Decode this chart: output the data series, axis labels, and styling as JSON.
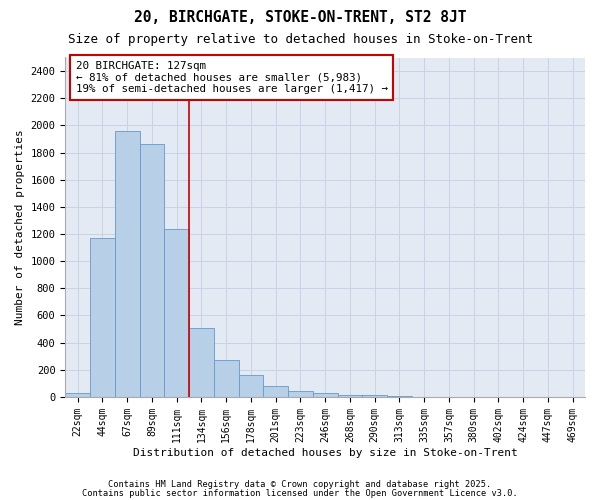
{
  "title1": "20, BIRCHGATE, STOKE-ON-TRENT, ST2 8JT",
  "title2": "Size of property relative to detached houses in Stoke-on-Trent",
  "xlabel": "Distribution of detached houses by size in Stoke-on-Trent",
  "ylabel": "Number of detached properties",
  "bin_labels": [
    "22sqm",
    "44sqm",
    "67sqm",
    "89sqm",
    "111sqm",
    "134sqm",
    "156sqm",
    "178sqm",
    "201sqm",
    "223sqm",
    "246sqm",
    "268sqm",
    "290sqm",
    "313sqm",
    "335sqm",
    "357sqm",
    "380sqm",
    "402sqm",
    "424sqm",
    "447sqm",
    "469sqm"
  ],
  "bar_values": [
    30,
    1170,
    1960,
    1860,
    1240,
    510,
    270,
    160,
    80,
    45,
    30,
    15,
    15,
    5,
    0,
    0,
    0,
    0,
    0,
    0,
    0
  ],
  "bar_color": "#b8cfe8",
  "bar_edgecolor": "#6699cc",
  "annotation_text": "20 BIRCHGATE: 127sqm\n← 81% of detached houses are smaller (5,983)\n19% of semi-detached houses are larger (1,417) →",
  "annotation_box_color": "#ffffff",
  "annotation_box_edgecolor": "#cc0000",
  "ylim": [
    0,
    2500
  ],
  "yticks": [
    0,
    200,
    400,
    600,
    800,
    1000,
    1200,
    1400,
    1600,
    1800,
    2000,
    2200,
    2400
  ],
  "grid_color": "#c8d4e4",
  "bg_color": "#e4eaf4",
  "footer1": "Contains HM Land Registry data © Crown copyright and database right 2025.",
  "footer2": "Contains public sector information licensed under the Open Government Licence v3.0.",
  "red_line_color": "#cc0000",
  "title_fontsize": 10.5,
  "subtitle_fontsize": 9
}
